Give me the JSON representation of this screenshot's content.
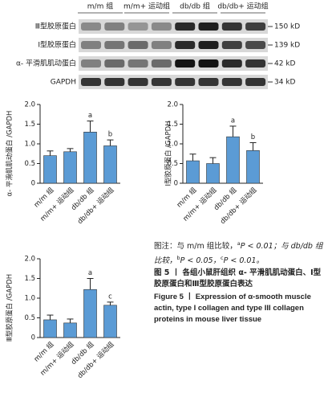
{
  "blot": {
    "lanes": [
      "m/m 组",
      "m/m+ 运动组",
      "db/db 组",
      "db/db+ 运动组"
    ],
    "rows": [
      {
        "protein": "Ⅲ型胶原蛋白",
        "size": "150 kD"
      },
      {
        "protein": "Ⅰ型胶原蛋白",
        "size": "139 kD"
      },
      {
        "protein": "α- 平滑肌肌动蛋白",
        "size": "42 kD"
      },
      {
        "protein": "GAPDH",
        "size": "34 kD"
      }
    ]
  },
  "chart_data": [
    {
      "type": "bar",
      "y_label": "α- 平滑肌肌动蛋白 /GAPDH",
      "categories": [
        "m/m 组",
        "m/m+ 运动组",
        "db/db 组",
        "db/db+ 运动组"
      ],
      "values": [
        0.7,
        0.8,
        1.3,
        0.95
      ],
      "errors": [
        0.12,
        0.08,
        0.28,
        0.15
      ],
      "significance": [
        null,
        null,
        "a",
        "b"
      ],
      "color": "#5b9bd5",
      "ylim": [
        0,
        2
      ],
      "yticks": [
        0,
        0.5,
        {
          "value": 1,
          "label": "1.0"
        },
        1.5,
        {
          "value": 2,
          "label": "2.0"
        }
      ]
    },
    {
      "type": "bar",
      "y_label": "Ⅰ型胶原蛋白 /GAPDH",
      "categories": [
        "m/m 组",
        "m/m+ 运动组",
        "db/db 组",
        "db/db+ 运动组"
      ],
      "values": [
        0.57,
        0.5,
        1.18,
        0.83
      ],
      "errors": [
        0.17,
        0.15,
        0.27,
        0.2
      ],
      "significance": [
        null,
        null,
        "a",
        "b"
      ],
      "color": "#5b9bd5",
      "ylim": [
        0,
        2
      ],
      "yticks": [
        0,
        0.5,
        {
          "value": 1,
          "label": "1.0"
        },
        1.5,
        {
          "value": 2,
          "label": "2.0"
        }
      ]
    },
    {
      "type": "bar",
      "y_label": "Ⅲ型胶原蛋白 /GAPDH",
      "categories": [
        "m/m 组",
        "m/m+ 运动组",
        "db/db 组",
        "db/db+ 运动组"
      ],
      "values": [
        0.45,
        0.37,
        1.22,
        0.82
      ],
      "errors": [
        0.12,
        0.1,
        0.28,
        0.08
      ],
      "significance": [
        null,
        null,
        "a",
        "c"
      ],
      "color": "#5b9bd5",
      "ylim": [
        0,
        2
      ],
      "yticks": [
        0,
        0.5,
        {
          "value": 1,
          "label": "1.0"
        },
        1.5,
        {
          "value": 2,
          "label": "2.0"
        }
      ]
    }
  ],
  "caption": {
    "note": [
      "图注：与 m/m 组比较，",
      "a",
      "P < 0.01；与 db/db 组比较，",
      "b",
      "P < 0.05，",
      "c",
      "P < 0.01。"
    ],
    "title_cn": "图 5 丨 各组小鼠肝组织 α- 平滑肌肌动蛋白、Ⅰ型胶原蛋白和Ⅲ型胶原蛋白表达",
    "title_en": "Figure 5 丨 Expression of α-smooth muscle actin, type I collagen and type III collagen proteins in mouse liver tissue"
  }
}
